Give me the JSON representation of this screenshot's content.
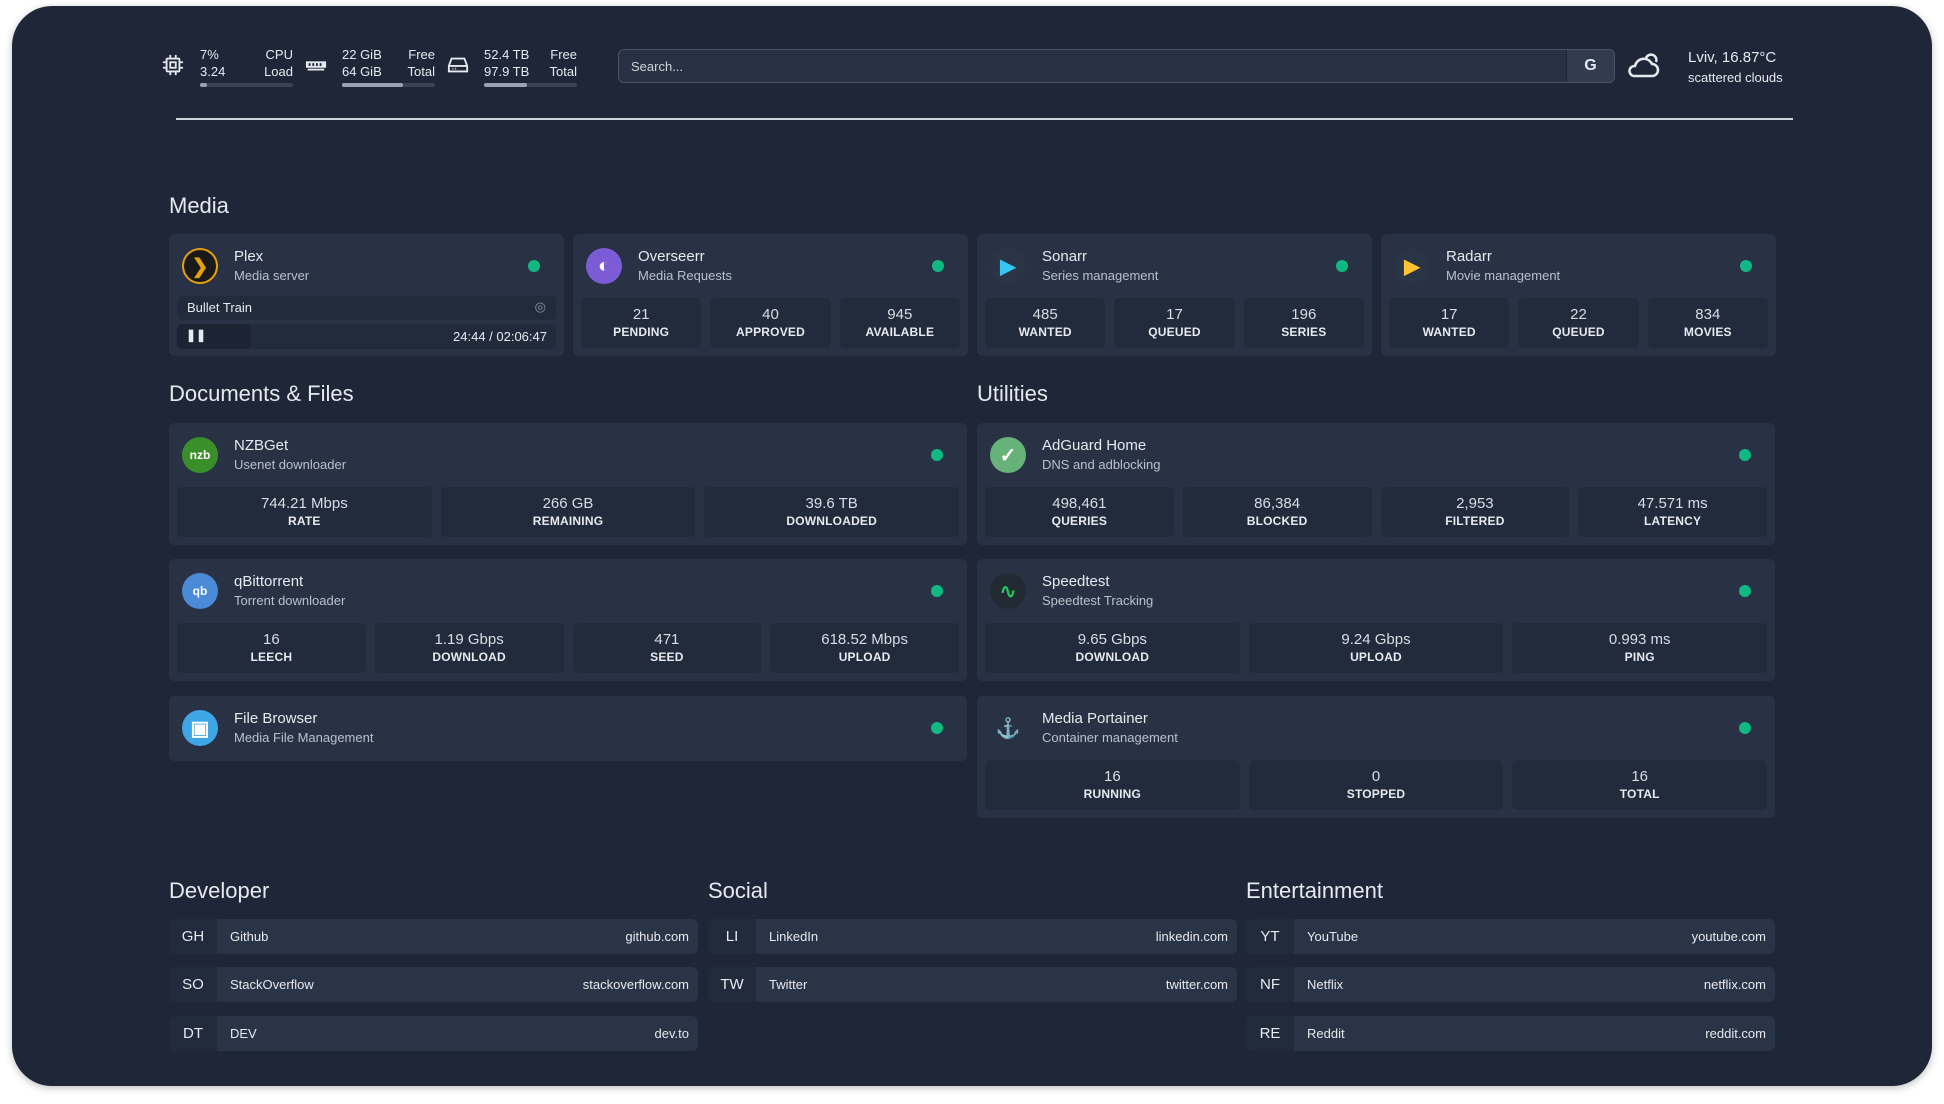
{
  "header": {
    "cpu": {
      "value": "7%",
      "load": "3.24",
      "label1": "CPU",
      "label2": "Load",
      "percent": 7,
      "icon": "cpu-icon"
    },
    "memory": {
      "value": "22 GiB",
      "total": "64 GiB",
      "label1": "Free",
      "label2": "Total",
      "percent": 66,
      "icon": "memory-icon"
    },
    "disk": {
      "value": "52.4 TB",
      "total": "97.9 TB",
      "label1": "Free",
      "label2": "Total",
      "percent": 46,
      "icon": "disk-icon"
    },
    "search": {
      "placeholder": "Search...",
      "button": "G"
    },
    "weather": {
      "location": "Lviv, 16.87°C",
      "condition": "scattered clouds",
      "icon": "cloud-icon"
    }
  },
  "colors": {
    "background": "#1f2638",
    "card": "#283244",
    "status_ok": "#10b981"
  },
  "sections": {
    "media": "Media",
    "docs": "Documents & Files",
    "utilities": "Utilities",
    "developer": "Developer",
    "social": "Social",
    "entertainment": "Entertainment"
  },
  "cards": [
    {
      "id": "plex",
      "title": "Plex",
      "subtitle": "Media server",
      "icon": "plex-icon",
      "icolor": "#1a1a1a",
      "glyph": "❯",
      "gcolor": "#e5a00d",
      "now_playing": {
        "title": "Bullet Train",
        "time": "24:44 / 02:06:47",
        "state": "paused",
        "progress": 19.5
      }
    },
    {
      "id": "overseerr",
      "title": "Overseerr",
      "subtitle": "Media Requests",
      "icon": "overseerr-icon",
      "icolor": "#7c5cd6",
      "glyph": "◐",
      "gcolor": "#fff",
      "stats": [
        {
          "value": "21",
          "label": "PENDING"
        },
        {
          "value": "40",
          "label": "APPROVED"
        },
        {
          "value": "945",
          "label": "AVAILABLE"
        }
      ]
    },
    {
      "id": "sonarr",
      "title": "Sonarr",
      "subtitle": "Series management",
      "icon": "sonarr-icon",
      "icolor": "#2a3447",
      "glyph": "▶",
      "gcolor": "#35c5f0",
      "stats": [
        {
          "value": "485",
          "label": "WANTED"
        },
        {
          "value": "17",
          "label": "QUEUED"
        },
        {
          "value": "196",
          "label": "SERIES"
        }
      ]
    },
    {
      "id": "radarr",
      "title": "Radarr",
      "subtitle": "Movie management",
      "icon": "radarr-icon",
      "icolor": "#2a3447",
      "glyph": "▶",
      "gcolor": "#ffc230",
      "stats": [
        {
          "value": "17",
          "label": "WANTED"
        },
        {
          "value": "22",
          "label": "QUEUED"
        },
        {
          "value": "834",
          "label": "MOVIES"
        }
      ]
    },
    {
      "id": "nzbget",
      "title": "NZBGet",
      "subtitle": "Usenet downloader",
      "icon": "nzbget-icon",
      "icolor": "#3a8f2a",
      "glyph": "nzb",
      "gcolor": "#fff",
      "stats": [
        {
          "value": "744.21 Mbps",
          "label": "RATE"
        },
        {
          "value": "266 GB",
          "label": "REMAINING"
        },
        {
          "value": "39.6 TB",
          "label": "DOWNLOADED"
        }
      ]
    },
    {
      "id": "adguard",
      "title": "AdGuard Home",
      "subtitle": "DNS and adblocking",
      "icon": "adguard-shield-icon",
      "icolor": "#67b279",
      "glyph": "✓",
      "gcolor": "#fff",
      "stats": [
        {
          "value": "498,461",
          "label": "QUERIES"
        },
        {
          "value": "86,384",
          "label": "BLOCKED"
        },
        {
          "value": "2,953",
          "label": "FILTERED"
        },
        {
          "value": "47.571 ms",
          "label": "LATENCY"
        }
      ]
    },
    {
      "id": "qbittorrent",
      "title": "qBittorrent",
      "subtitle": "Torrent downloader",
      "icon": "qbittorrent-icon",
      "icolor": "#4a8ad6",
      "glyph": "qb",
      "gcolor": "#fff",
      "stats": [
        {
          "value": "16",
          "label": "LEECH"
        },
        {
          "value": "1.19 Gbps",
          "label": "DOWNLOAD"
        },
        {
          "value": "471",
          "label": "SEED"
        },
        {
          "value": "618.52 Mbps",
          "label": "UPLOAD"
        }
      ]
    },
    {
      "id": "speedtest",
      "title": "Speedtest",
      "subtitle": "Speedtest Tracking",
      "icon": "pulse-icon",
      "icolor": "#232a33",
      "glyph": "∿",
      "gcolor": "#22c55e",
      "stats": [
        {
          "value": "9.65 Gbps",
          "label": "DOWNLOAD"
        },
        {
          "value": "9.24 Gbps",
          "label": "UPLOAD"
        },
        {
          "value": "0.993 ms",
          "label": "PING"
        }
      ]
    },
    {
      "id": "filebrowser",
      "title": "File Browser",
      "subtitle": "Media File Management",
      "icon": "file-browser-icon",
      "icolor": "#3fa6e6",
      "glyph": "▣",
      "gcolor": "#fff"
    },
    {
      "id": "portainer",
      "title": "Media Portainer",
      "subtitle": "Container management",
      "icon": "portainer-icon",
      "icolor": "#283244",
      "glyph": "⚓",
      "gcolor": "#3bbced",
      "stats": [
        {
          "value": "16",
          "label": "RUNNING"
        },
        {
          "value": "0",
          "label": "STOPPED"
        },
        {
          "value": "16",
          "label": "TOTAL"
        }
      ]
    }
  ],
  "bookmarks": [
    [
      {
        "abbr": "GH",
        "name": "Github",
        "url": "github.com"
      },
      {
        "abbr": "SO",
        "name": "StackOverflow",
        "url": "stackoverflow.com"
      },
      {
        "abbr": "DT",
        "name": "DEV",
        "url": "dev.to"
      }
    ],
    [
      {
        "abbr": "LI",
        "name": "LinkedIn",
        "url": "linkedin.com"
      },
      {
        "abbr": "TW",
        "name": "Twitter",
        "url": "twitter.com"
      }
    ],
    [
      {
        "abbr": "YT",
        "name": "YouTube",
        "url": "youtube.com"
      },
      {
        "abbr": "NF",
        "name": "Netflix",
        "url": "netflix.com"
      },
      {
        "abbr": "RE",
        "name": "Reddit",
        "url": "reddit.com"
      }
    ]
  ]
}
